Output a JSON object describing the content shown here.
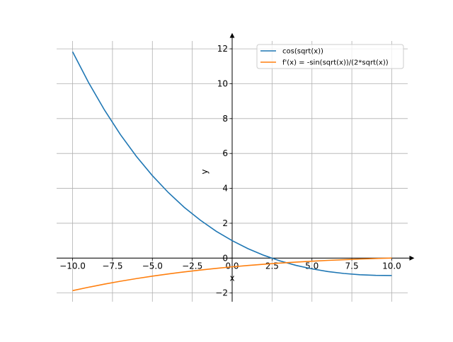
{
  "chart_data": {
    "type": "line",
    "x": [
      -10,
      -9,
      -8,
      -7,
      -6,
      -5,
      -4,
      -3,
      -2,
      -1,
      0,
      1,
      2,
      3,
      4,
      5,
      6,
      7,
      8,
      9,
      10
    ],
    "series": [
      {
        "name": "cos(sqrt(x))",
        "color": "#1f77b4",
        "values": [
          11.83,
          10.07,
          8.49,
          7.08,
          5.83,
          4.73,
          3.76,
          2.91,
          2.18,
          1.54,
          1,
          0.54,
          0.156,
          -0.16,
          -0.416,
          -0.617,
          -0.77,
          -0.88,
          -0.951,
          -0.99,
          -1.0
        ]
      },
      {
        "name": "f'(x) = -sin(sqrt(x))/(2*sqrt(x))",
        "color": "#ff7f0e",
        "values": [
          -1.864,
          -1.67,
          -1.49,
          -1.325,
          -1.174,
          -1.034,
          -0.907,
          -0.79,
          -0.684,
          -0.588,
          -0.5,
          -0.421,
          -0.349,
          -0.285,
          -0.227,
          -0.176,
          -0.13,
          -0.09,
          -0.054,
          -0.0235,
          0.0033
        ]
      }
    ],
    "xlabel": "x",
    "ylabel": "y",
    "xlim": [
      -11,
      11
    ],
    "ylim": [
      -2.5,
      12.45
    ],
    "xticks": [
      {
        "value": -10,
        "label": "−10.0"
      },
      {
        "value": -7.5,
        "label": "−7.5"
      },
      {
        "value": -5,
        "label": "−5.0"
      },
      {
        "value": -2.5,
        "label": "−2.5"
      },
      {
        "value": 0,
        "label": "0.0"
      },
      2.5,
      {
        "value": 5,
        "label": "5.0"
      },
      7.5,
      {
        "value": 10,
        "label": "10.0"
      }
    ],
    "yticks": [
      {
        "value": -2,
        "label": "−2"
      },
      0,
      2,
      4,
      6,
      8,
      10,
      12
    ],
    "grid": true,
    "legend": "upper right"
  }
}
